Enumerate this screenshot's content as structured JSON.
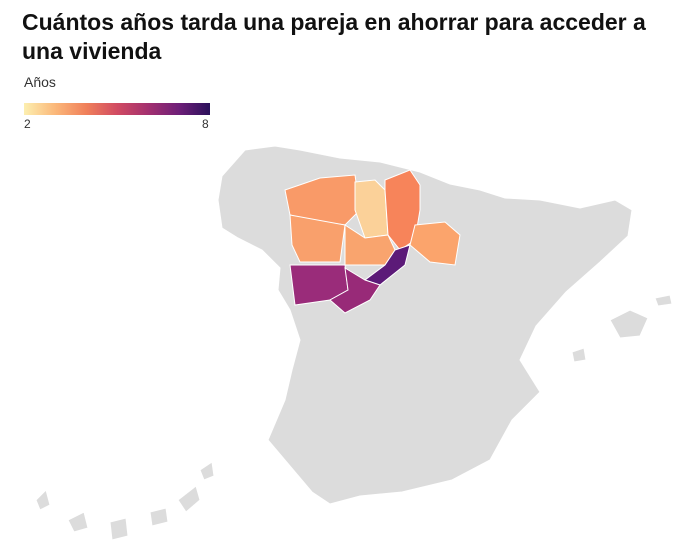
{
  "title": "Cuántos años tarda una pareja en ahorrar para acceder a una vivienda",
  "legend": {
    "title": "Años",
    "min_label": "2",
    "max_label": "8",
    "min": 2,
    "max": 8,
    "scale": [
      "#fcefb0",
      "#fbb87a",
      "#f0805a",
      "#d14b62",
      "#a3306f",
      "#6e1f78",
      "#2b115b"
    ]
  },
  "no_data_color": "#dcdcdc",
  "provinces": [
    {
      "id": "leon",
      "value": 4.0,
      "color": "#f99a68"
    },
    {
      "id": "palencia",
      "value": 3.0,
      "color": "#fbd199"
    },
    {
      "id": "burgos",
      "value": 4.5,
      "color": "#f7845a"
    },
    {
      "id": "soria",
      "value": 3.8,
      "color": "#fba46c"
    },
    {
      "id": "zamora",
      "value": 3.8,
      "color": "#f9a06c"
    },
    {
      "id": "valladolid",
      "value": 3.8,
      "color": "#f9a46e"
    },
    {
      "id": "segovia",
      "value": 7.3,
      "color": "#5c1a78"
    },
    {
      "id": "salamanca",
      "value": 6.3,
      "color": "#9a2c7a"
    },
    {
      "id": "avila",
      "value": 6.3,
      "color": "#982a78"
    }
  ]
}
